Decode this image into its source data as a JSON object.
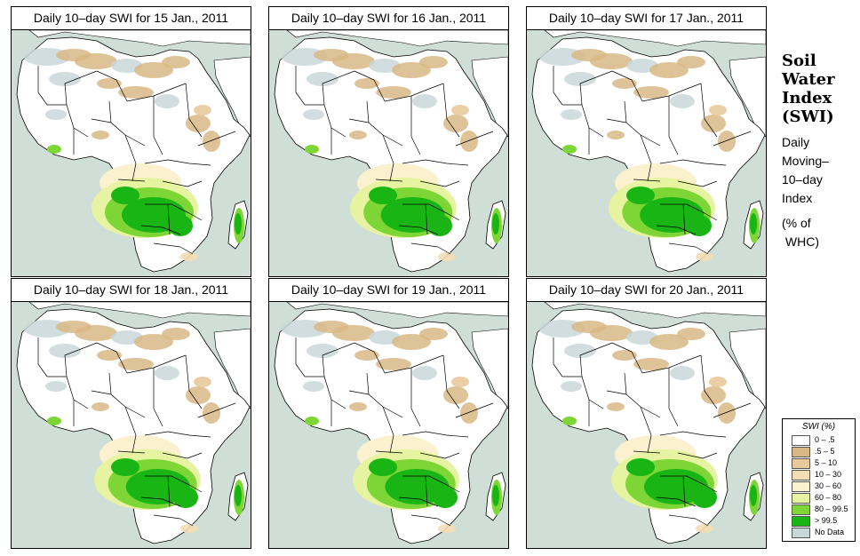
{
  "panels": [
    {
      "title": "Daily 10–day SWI for  15 Jan., 2011"
    },
    {
      "title": "Daily 10–day SWI for  16 Jan., 2011"
    },
    {
      "title": "Daily 10–day SWI for  17 Jan., 2011"
    },
    {
      "title": "Daily 10–day SWI for  18 Jan., 2011"
    },
    {
      "title": "Daily 10–day SWI for  19 Jan., 2011"
    },
    {
      "title": "Daily 10–day SWI for  20 Jan., 2011"
    }
  ],
  "side_title": {
    "line1": "Soil",
    "line2": "Water",
    "line3": "Index",
    "line4": "(SWI)"
  },
  "side_subtitle": {
    "line1": "Daily",
    "line2": "Moving–",
    "line3": "10–day",
    "line4": "Index"
  },
  "side_units": {
    "line1": "(% of",
    "line2": " WHC)"
  },
  "legend": {
    "title": "SWI (%)",
    "items": [
      {
        "label": "0 – .5",
        "color": "#ffffff"
      },
      {
        "label": ".5 – 5",
        "color": "#d9b886"
      },
      {
        "label": "5 – 10",
        "color": "#e8c99b"
      },
      {
        "label": "10 – 30",
        "color": "#f3deb4"
      },
      {
        "label": "30 – 60",
        "color": "#fbf1cf"
      },
      {
        "label": "60 – 80",
        "color": "#e6f3a0"
      },
      {
        "label": "80 – 99.5",
        "color": "#7dd636"
      },
      {
        "label": "> 99.5",
        "color": "#19b515"
      },
      {
        "label": "No Data",
        "color": "#c9d7d9"
      }
    ]
  },
  "colors": {
    "ocean": "#cfdfd7",
    "land": "#ffffff",
    "border": "#000000"
  }
}
